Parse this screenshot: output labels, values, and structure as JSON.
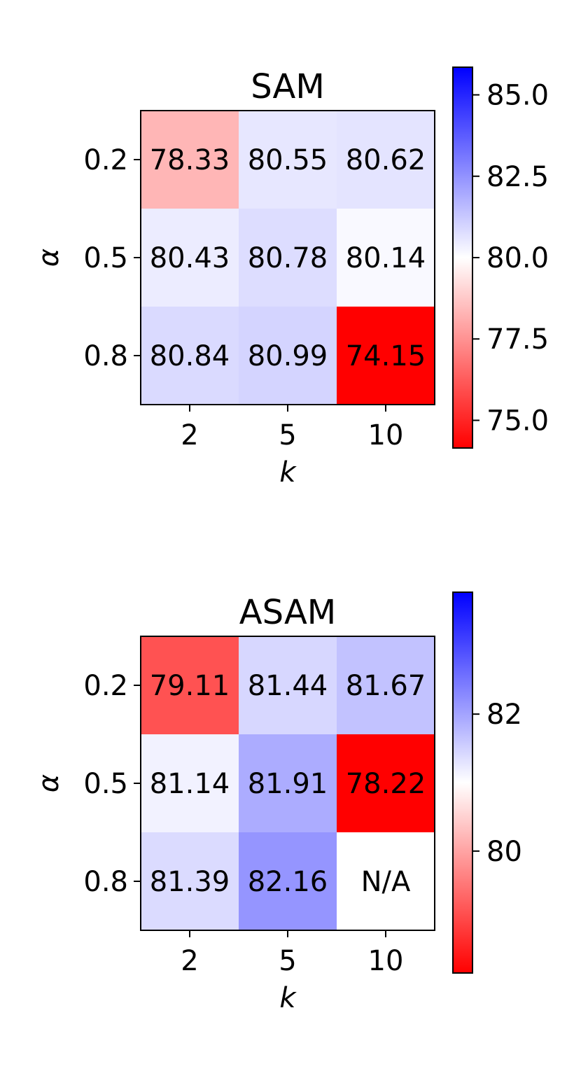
{
  "chart_data": [
    {
      "type": "heatmap",
      "title": "SAM",
      "xlabel": "k",
      "ylabel": "α",
      "x_categories": [
        "2",
        "5",
        "10"
      ],
      "y_categories": [
        "0.2",
        "0.5",
        "0.8"
      ],
      "values": [
        [
          78.33,
          80.55,
          80.62
        ],
        [
          80.43,
          80.78,
          80.14
        ],
        [
          80.84,
          80.99,
          74.15
        ]
      ],
      "cell_labels": [
        [
          "78.33",
          "80.55",
          "80.62"
        ],
        [
          "80.43",
          "80.78",
          "80.14"
        ],
        [
          "80.84",
          "80.99",
          "74.15"
        ]
      ],
      "colormap": "bwr_r",
      "vmin": 74.15,
      "vmax": 85.85,
      "colorbar_ticks": [
        "75.0",
        "77.5",
        "80.0",
        "82.5",
        "85.0"
      ],
      "colorbar_tick_values": [
        75.0,
        77.5,
        80.0,
        82.5,
        85.0
      ]
    },
    {
      "type": "heatmap",
      "title": "ASAM",
      "xlabel": "k",
      "ylabel": "α",
      "x_categories": [
        "2",
        "5",
        "10"
      ],
      "y_categories": [
        "0.2",
        "0.5",
        "0.8"
      ],
      "values": [
        [
          79.11,
          81.44,
          81.67
        ],
        [
          81.14,
          81.91,
          78.22
        ],
        [
          81.39,
          82.16,
          null
        ]
      ],
      "cell_labels": [
        [
          "79.11",
          "81.44",
          "81.67"
        ],
        [
          "81.14",
          "81.91",
          "78.22"
        ],
        [
          "81.39",
          "82.16",
          "N/A"
        ]
      ],
      "colormap": "bwr_r",
      "vmin": 78.22,
      "vmax": 83.78,
      "colorbar_ticks": [
        "80",
        "82"
      ],
      "colorbar_tick_values": [
        80,
        82
      ]
    }
  ]
}
